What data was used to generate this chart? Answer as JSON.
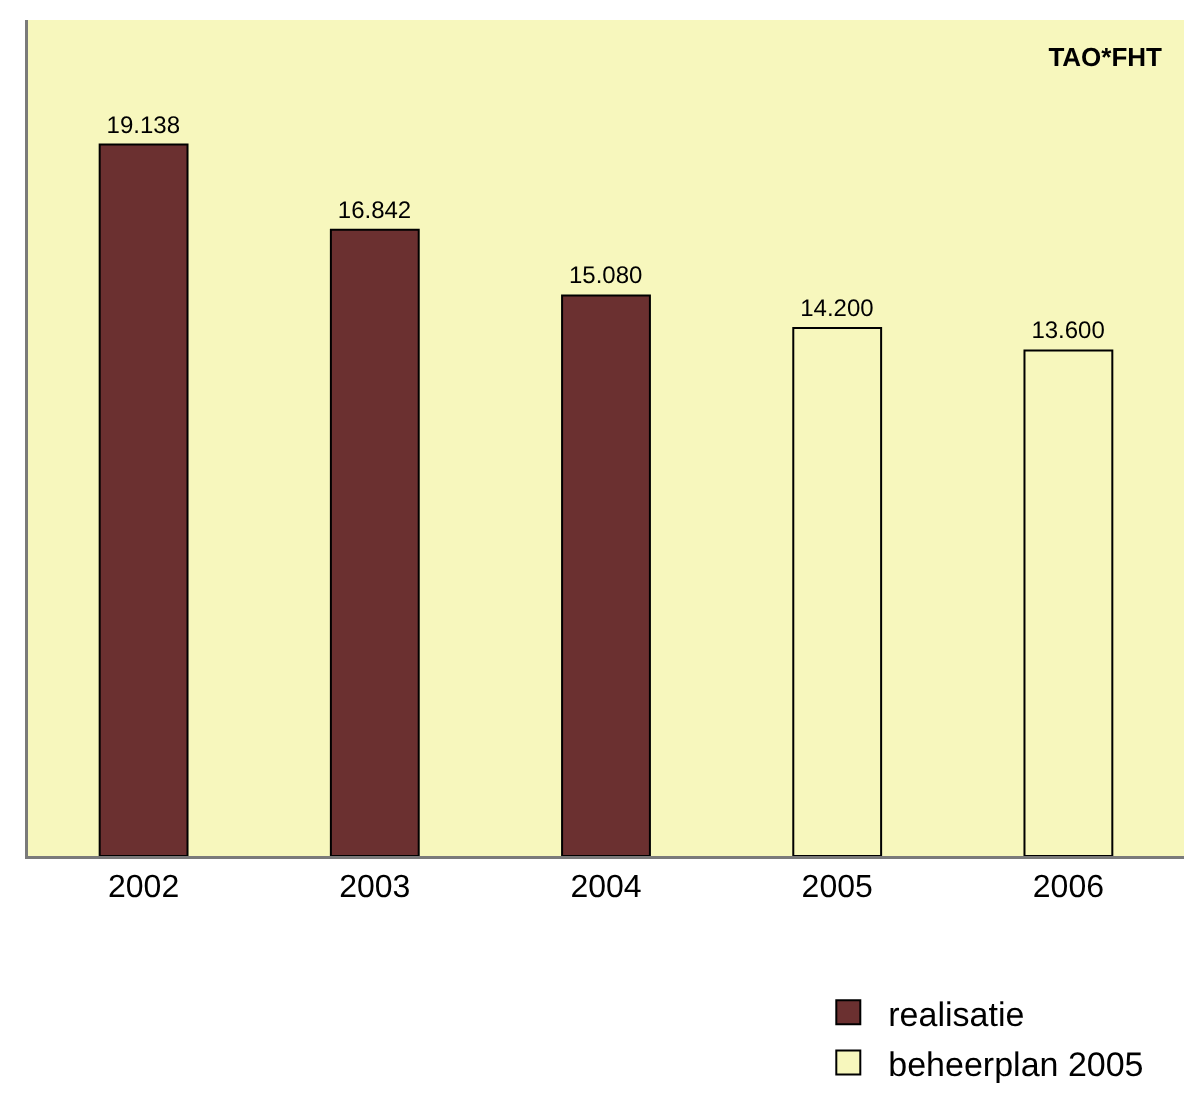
{
  "chart_data": {
    "type": "bar",
    "title": "TAO*FHT",
    "categories": [
      "2002",
      "2003",
      "2004",
      "2005",
      "2006"
    ],
    "series": [
      {
        "name": "realisatie",
        "color": "#6b3030",
        "values": [
          19138,
          16842,
          15080,
          null,
          null
        ],
        "value_labels": [
          "19.138",
          "16.842",
          "15.080",
          null,
          null
        ]
      },
      {
        "name": "beheerplan 2005",
        "color": "#f7f7bd",
        "values": [
          null,
          null,
          null,
          14200,
          13600
        ],
        "value_labels": [
          null,
          null,
          null,
          "14.200",
          "13.600"
        ]
      }
    ],
    "legend": "bottom right",
    "tick_labels": "x"
  }
}
